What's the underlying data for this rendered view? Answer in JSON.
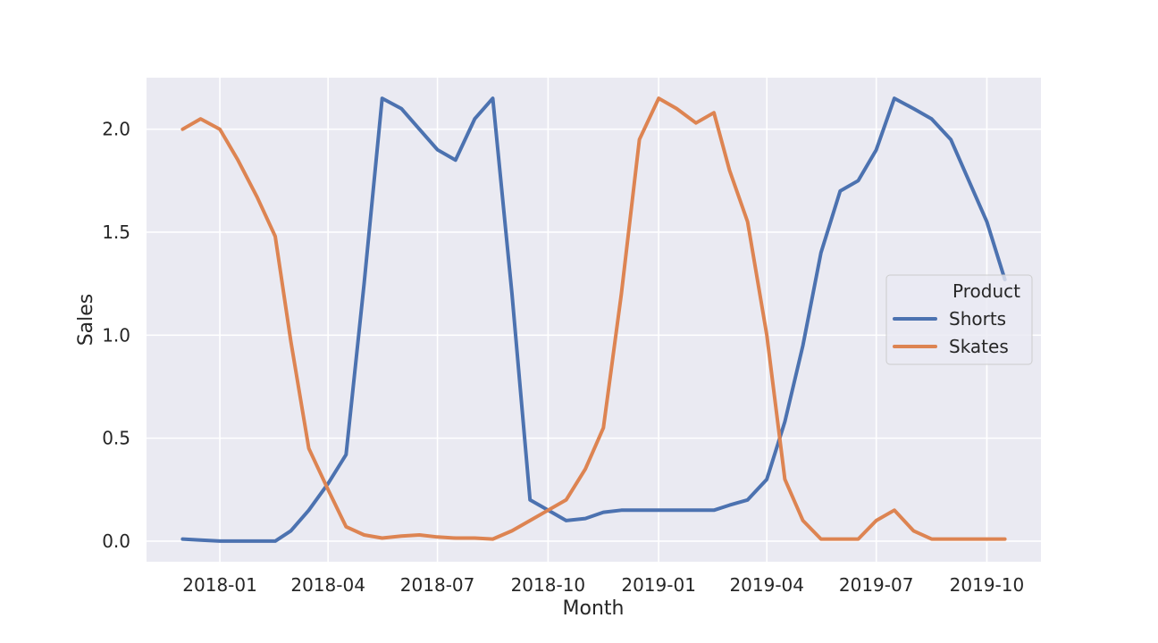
{
  "chart_data": {
    "type": "line",
    "xlabel": "Month",
    "ylabel": "Sales",
    "xlim": [
      "2017-11-01",
      "2019-11-15"
    ],
    "ylim": [
      -0.1,
      2.25
    ],
    "x_ticks": [
      "2018-01",
      "2018-04",
      "2018-07",
      "2018-10",
      "2019-01",
      "2019-04",
      "2019-07",
      "2019-10"
    ],
    "y_ticks": [
      "0.0",
      "0.5",
      "1.0",
      "1.5",
      "2.0"
    ],
    "grid": true,
    "legend": {
      "title": "Product",
      "placement": "center-right"
    },
    "series": [
      {
        "name": "Shorts",
        "color": "#4c72b0",
        "points": [
          [
            "2017-12-01",
            0.01
          ],
          [
            "2017-12-16",
            0.005
          ],
          [
            "2018-01-01",
            0.0
          ],
          [
            "2018-01-16",
            0.0
          ],
          [
            "2018-02-01",
            0.0
          ],
          [
            "2018-02-16",
            0.0
          ],
          [
            "2018-03-01",
            0.05
          ],
          [
            "2018-03-16",
            0.15
          ],
          [
            "2018-04-01",
            0.28
          ],
          [
            "2018-04-16",
            0.42
          ],
          [
            "2018-05-01",
            1.25
          ],
          [
            "2018-05-16",
            2.15
          ],
          [
            "2018-06-01",
            2.1
          ],
          [
            "2018-06-16",
            2.0
          ],
          [
            "2018-07-01",
            1.9
          ],
          [
            "2018-07-16",
            1.85
          ],
          [
            "2018-08-01",
            2.05
          ],
          [
            "2018-08-16",
            2.15
          ],
          [
            "2018-09-01",
            1.2
          ],
          [
            "2018-09-16",
            0.2
          ],
          [
            "2018-10-01",
            0.15
          ],
          [
            "2018-10-16",
            0.1
          ],
          [
            "2018-11-01",
            0.11
          ],
          [
            "2018-11-16",
            0.14
          ],
          [
            "2018-12-01",
            0.15
          ],
          [
            "2018-12-16",
            0.15
          ],
          [
            "2019-01-01",
            0.15
          ],
          [
            "2019-01-16",
            0.15
          ],
          [
            "2019-02-01",
            0.15
          ],
          [
            "2019-02-16",
            0.15
          ],
          [
            "2019-03-01",
            0.175
          ],
          [
            "2019-03-16",
            0.2
          ],
          [
            "2019-04-01",
            0.3
          ],
          [
            "2019-04-16",
            0.58
          ],
          [
            "2019-05-01",
            0.95
          ],
          [
            "2019-05-16",
            1.4
          ],
          [
            "2019-06-01",
            1.7
          ],
          [
            "2019-06-16",
            1.75
          ],
          [
            "2019-07-01",
            1.9
          ],
          [
            "2019-07-16",
            2.15
          ],
          [
            "2019-08-01",
            2.1
          ],
          [
            "2019-08-16",
            2.05
          ],
          [
            "2019-09-01",
            1.95
          ],
          [
            "2019-09-16",
            1.75
          ],
          [
            "2019-10-01",
            1.55
          ],
          [
            "2019-10-16",
            1.27
          ]
        ]
      },
      {
        "name": "Skates",
        "color": "#dd8452",
        "points": [
          [
            "2017-12-01",
            2.0
          ],
          [
            "2017-12-16",
            2.05
          ],
          [
            "2018-01-01",
            2.0
          ],
          [
            "2018-01-16",
            1.85
          ],
          [
            "2018-02-01",
            1.67
          ],
          [
            "2018-02-16",
            1.48
          ],
          [
            "2018-03-01",
            0.97
          ],
          [
            "2018-03-16",
            0.45
          ],
          [
            "2018-04-01",
            0.25
          ],
          [
            "2018-04-16",
            0.07
          ],
          [
            "2018-05-01",
            0.03
          ],
          [
            "2018-05-16",
            0.015
          ],
          [
            "2018-06-01",
            0.025
          ],
          [
            "2018-06-16",
            0.03
          ],
          [
            "2018-07-01",
            0.02
          ],
          [
            "2018-07-16",
            0.015
          ],
          [
            "2018-08-01",
            0.015
          ],
          [
            "2018-08-16",
            0.01
          ],
          [
            "2018-09-01",
            0.05
          ],
          [
            "2018-09-16",
            0.1
          ],
          [
            "2018-10-01",
            0.15
          ],
          [
            "2018-10-16",
            0.2
          ],
          [
            "2018-11-01",
            0.35
          ],
          [
            "2018-11-16",
            0.55
          ],
          [
            "2018-12-01",
            1.2
          ],
          [
            "2018-12-16",
            1.95
          ],
          [
            "2019-01-01",
            2.15
          ],
          [
            "2019-01-16",
            2.1
          ],
          [
            "2019-02-01",
            2.03
          ],
          [
            "2019-02-16",
            2.08
          ],
          [
            "2019-03-01",
            1.8
          ],
          [
            "2019-03-16",
            1.55
          ],
          [
            "2019-04-01",
            1.0
          ],
          [
            "2019-04-16",
            0.3
          ],
          [
            "2019-05-01",
            0.1
          ],
          [
            "2019-05-16",
            0.01
          ],
          [
            "2019-06-01",
            0.01
          ],
          [
            "2019-06-16",
            0.01
          ],
          [
            "2019-07-01",
            0.1
          ],
          [
            "2019-07-16",
            0.15
          ],
          [
            "2019-08-01",
            0.05
          ],
          [
            "2019-08-16",
            0.01
          ],
          [
            "2019-09-01",
            0.01
          ],
          [
            "2019-09-16",
            0.01
          ],
          [
            "2019-10-01",
            0.01
          ],
          [
            "2019-10-16",
            0.01
          ]
        ]
      }
    ]
  }
}
